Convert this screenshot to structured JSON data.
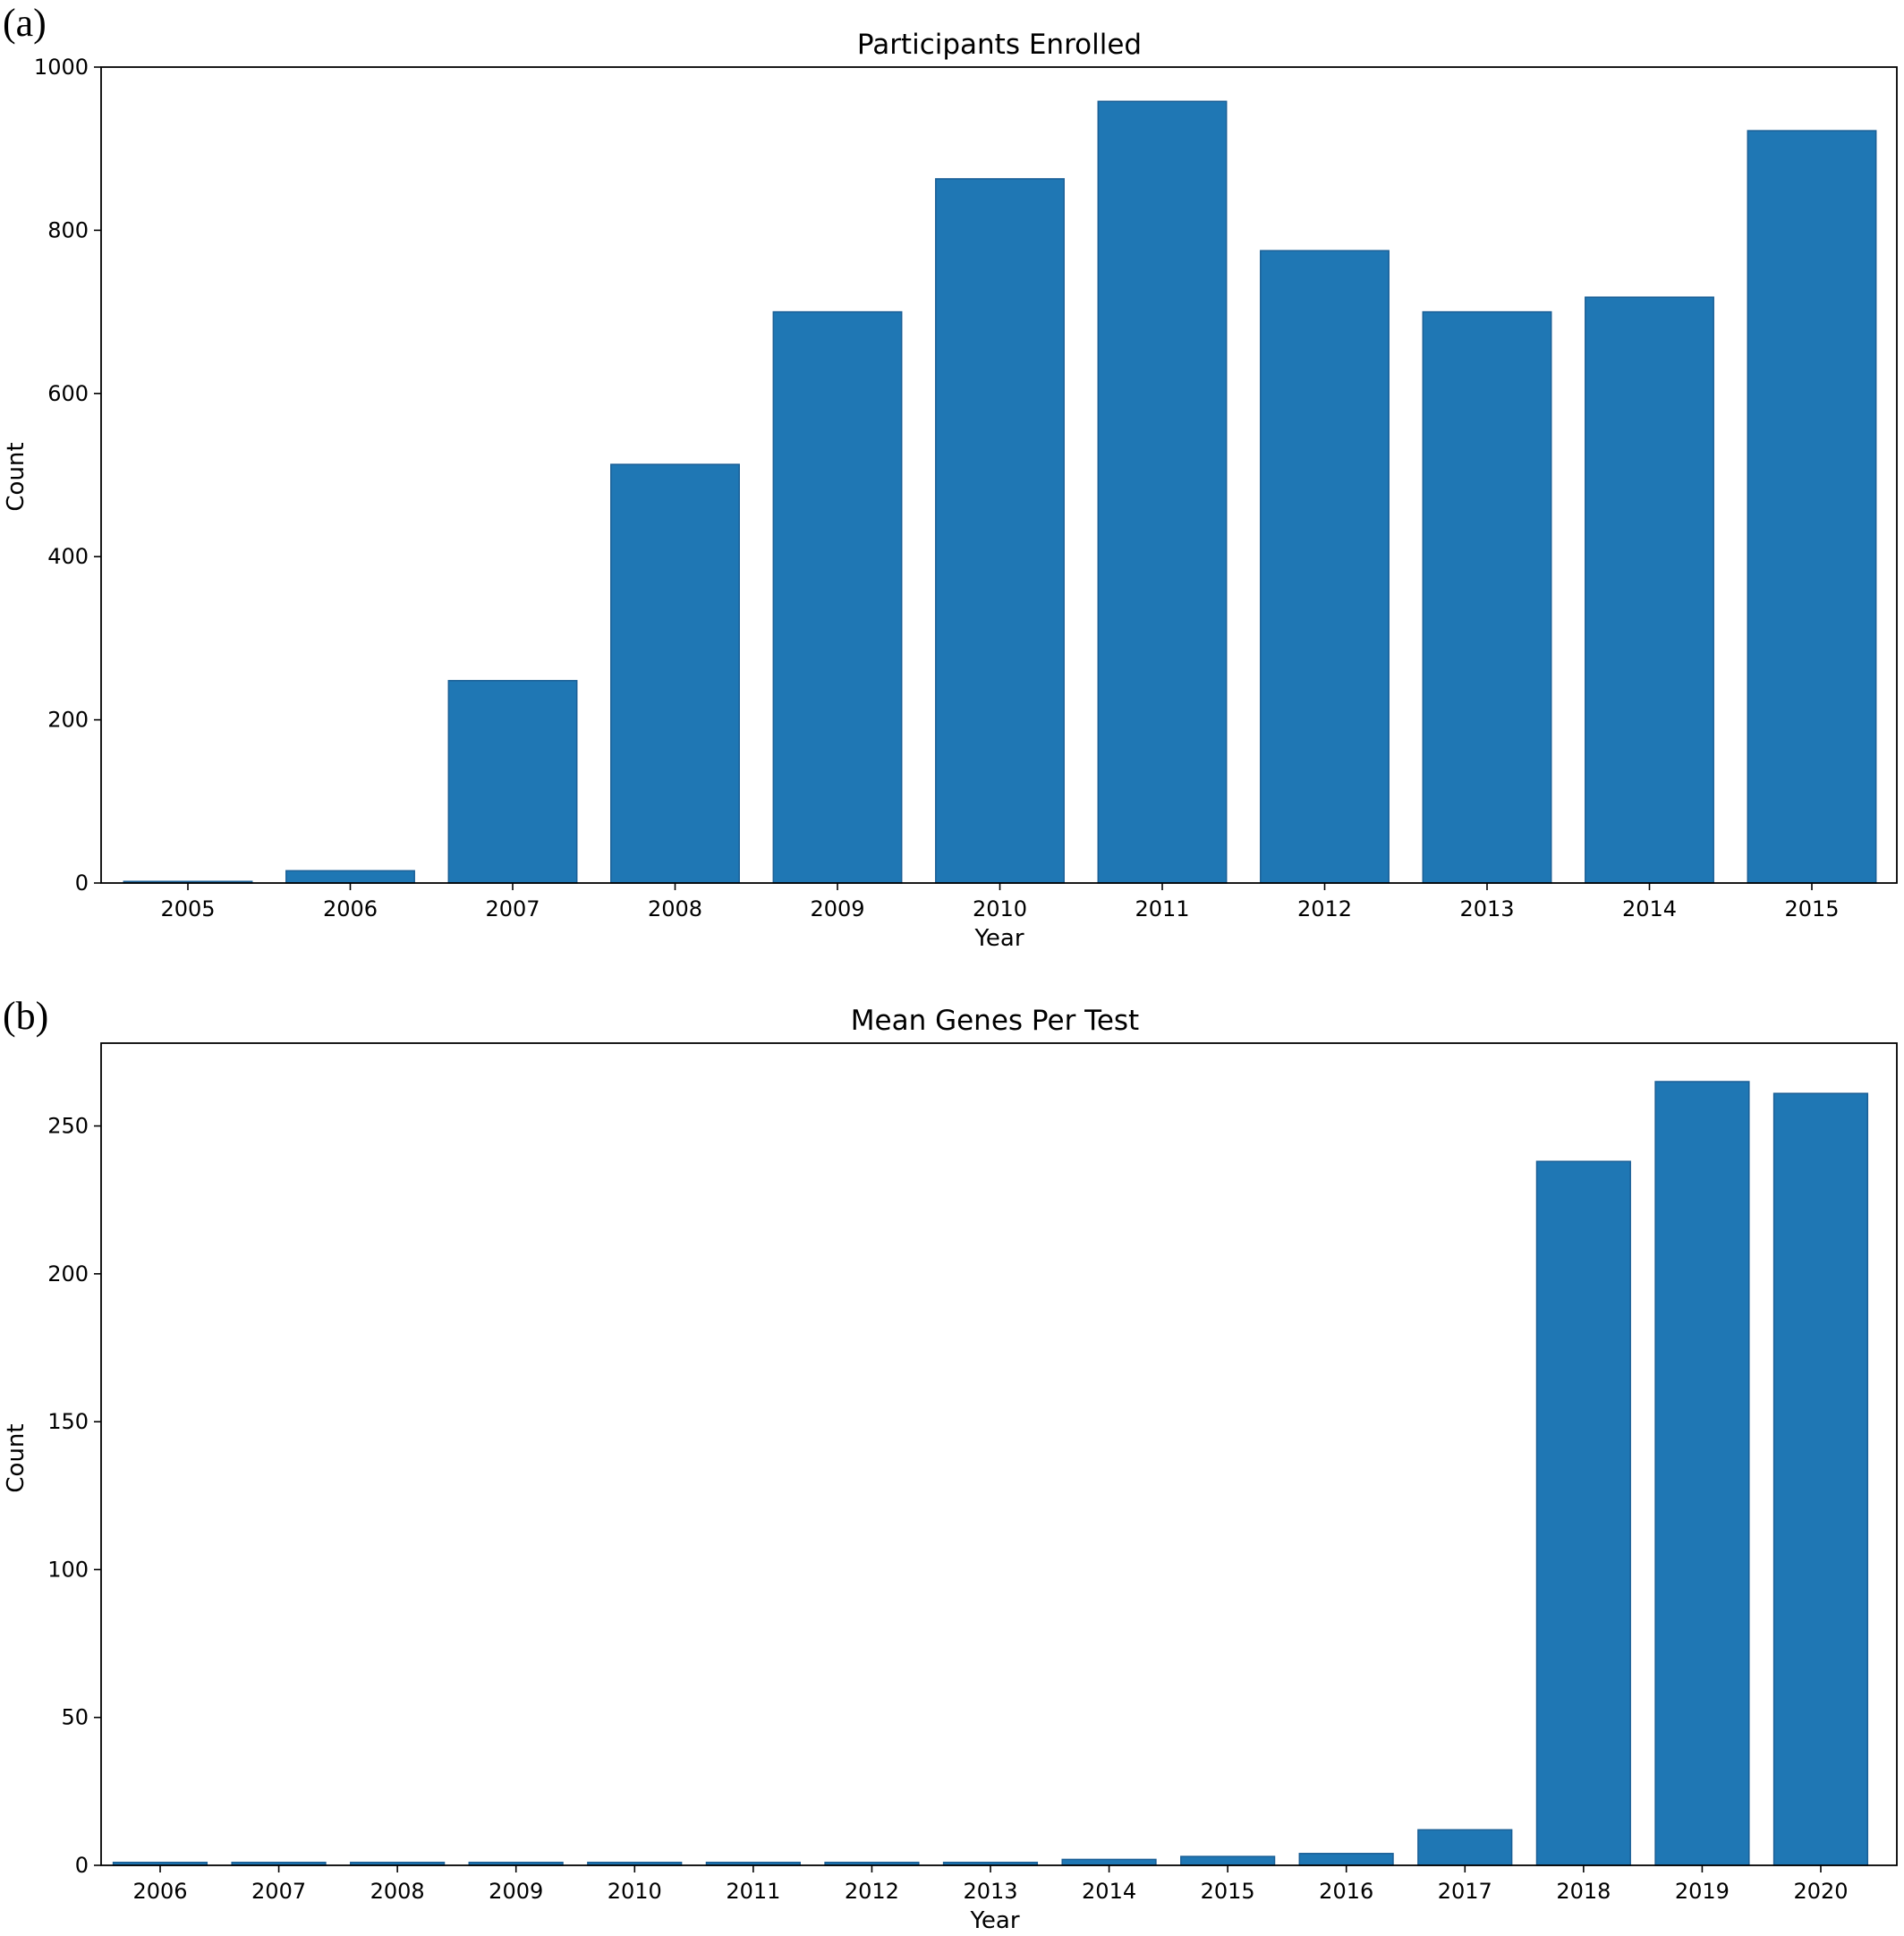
{
  "colors": {
    "bar": "#1f77b4",
    "bar_edge": "#1a5f96",
    "axes": "#000000",
    "background": "#ffffff"
  },
  "panels": [
    {
      "panel_label": "(a)"
    },
    {
      "panel_label": "(b)"
    }
  ],
  "chart_data": [
    {
      "type": "bar",
      "title": "Participants Enrolled",
      "xlabel": "Year",
      "ylabel": "Count",
      "categories": [
        "2005",
        "2006",
        "2007",
        "2008",
        "2009",
        "2010",
        "2011",
        "2012",
        "2013",
        "2014",
        "2015"
      ],
      "values": [
        2,
        15,
        248,
        513,
        700,
        863,
        958,
        775,
        700,
        718,
        922
      ],
      "ylim": [
        0,
        1000
      ],
      "yticks": [
        0,
        200,
        400,
        600,
        800,
        1000
      ],
      "grid": false,
      "legend": "none"
    },
    {
      "type": "bar",
      "title": "Mean Genes Per Test",
      "xlabel": "Year",
      "ylabel": "Count",
      "categories": [
        "2006",
        "2007",
        "2008",
        "2009",
        "2010",
        "2011",
        "2012",
        "2013",
        "2014",
        "2015",
        "2016",
        "2017",
        "2018",
        "2019",
        "2020"
      ],
      "values": [
        1,
        1,
        1,
        1,
        1,
        1,
        1,
        1,
        2,
        3,
        4,
        12,
        238,
        265,
        261
      ],
      "ylim": [
        0,
        278
      ],
      "yticks": [
        0,
        50,
        100,
        150,
        200,
        250
      ],
      "grid": false,
      "legend": "none"
    }
  ]
}
